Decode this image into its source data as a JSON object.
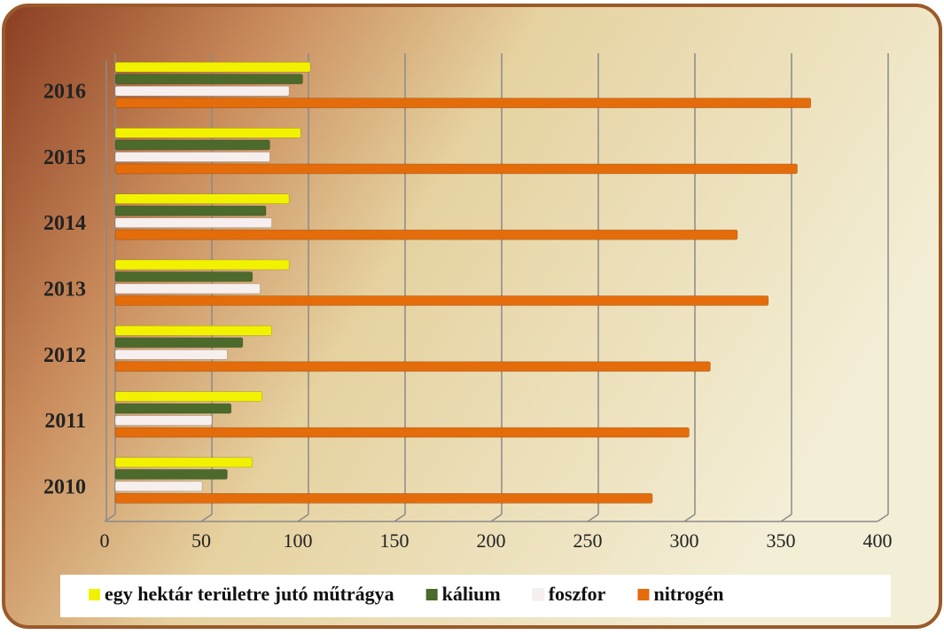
{
  "chart_data": {
    "type": "hbar",
    "categories": [
      "2010",
      "2011",
      "2012",
      "2013",
      "2014",
      "2015",
      "2016"
    ],
    "series": [
      {
        "name": "egy hektár területre jutó műtrágya",
        "color": "#f2f200",
        "values": [
          71,
          76,
          81,
          90,
          90,
          96,
          101
        ]
      },
      {
        "name": "kálium",
        "color": "#4b6a2b",
        "values": [
          58,
          60,
          66,
          71,
          78,
          80,
          97
        ]
      },
      {
        "name": "foszfor",
        "color": "#f7efed",
        "values": [
          45,
          50,
          58,
          75,
          81,
          80,
          90
        ]
      },
      {
        "name": "nitrogén",
        "color": "#e46c0a",
        "values": [
          278,
          297,
          308,
          338,
          322,
          353,
          360
        ]
      }
    ],
    "xlim": [
      0,
      400
    ],
    "xticks": [
      0,
      50,
      100,
      150,
      200,
      250,
      300,
      350,
      400
    ],
    "grid": true,
    "legend": "bottom"
  }
}
